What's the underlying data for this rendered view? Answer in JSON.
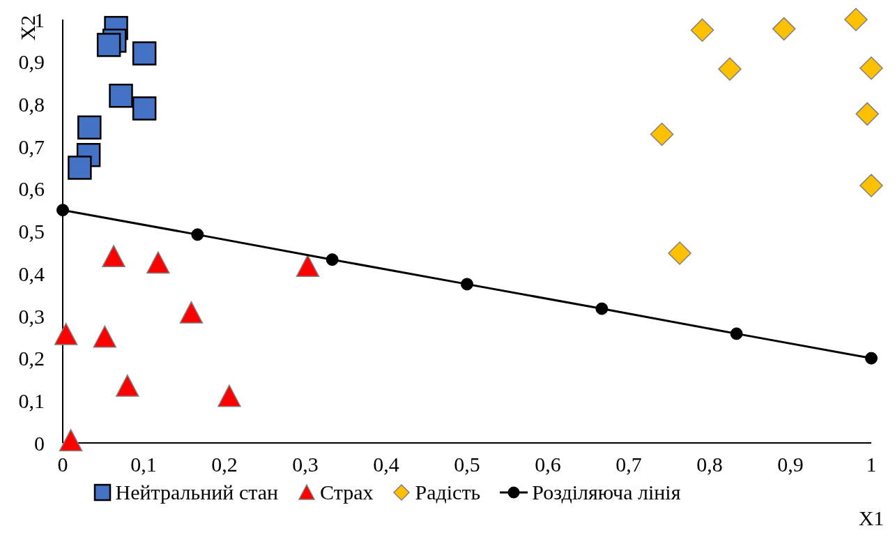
{
  "chart_data": {
    "type": "scatter",
    "xlabel": "X1",
    "ylabel": "X2",
    "xlim": [
      0,
      1
    ],
    "ylim": [
      0,
      1
    ],
    "xticks": [
      0,
      {
        "value": 0.1,
        "label": "0,1"
      },
      {
        "value": 0.2,
        "label": "0,2"
      },
      {
        "value": 0.3,
        "label": "0,3"
      },
      {
        "value": 0.4,
        "label": "0,4"
      },
      {
        "value": 0.5,
        "label": "0,5"
      },
      {
        "value": 0.6,
        "label": "0,6"
      },
      {
        "value": 0.7,
        "label": "0,7"
      },
      {
        "value": 0.8,
        "label": "0,8"
      },
      {
        "value": 0.9,
        "label": "0,9"
      },
      1
    ],
    "yticks": [
      0,
      {
        "value": 0.1,
        "label": "0,1"
      },
      {
        "value": 0.2,
        "label": "0,2"
      },
      {
        "value": 0.3,
        "label": "0,3"
      },
      {
        "value": 0.4,
        "label": "0,4"
      },
      {
        "value": 0.5,
        "label": "0,5"
      },
      {
        "value": 0.6,
        "label": "0,6"
      },
      {
        "value": 0.7,
        "label": "0,7"
      },
      {
        "value": 0.8,
        "label": "0,8"
      },
      {
        "value": 0.9,
        "label": "0,9"
      },
      1
    ],
    "grid": false,
    "legend": "bottom",
    "series": [
      {
        "name": "Нейтральний стан",
        "marker": "square",
        "color": "#4472c4",
        "x": [
          0.066,
          0.064,
          0.057,
          0.101,
          0.072,
          0.101,
          0.033,
          0.032,
          0.021
        ],
        "values": [
          0.98,
          0.95,
          0.94,
          0.92,
          0.82,
          0.79,
          0.745,
          0.68,
          0.65
        ]
      },
      {
        "name": "Страх",
        "marker": "triangle",
        "color": "#ff0000",
        "x": [
          0.063,
          0.118,
          0.303,
          0.159,
          0.004,
          0.052,
          0.08,
          0.206,
          0.01
        ],
        "values": [
          0.44,
          0.425,
          0.417,
          0.307,
          0.256,
          0.25,
          0.134,
          0.11,
          0.005
        ]
      },
      {
        "name": "Радість",
        "marker": "diamond",
        "color": "#ffc000",
        "x": [
          0.791,
          0.892,
          0.981,
          0.825,
          1,
          0.995,
          0.741,
          1,
          0.763
        ],
        "values": [
          0.975,
          0.978,
          1,
          0.883,
          0.885,
          0.777,
          0.729,
          0.608,
          0.448
        ]
      },
      {
        "name": "Розділяюча лінія",
        "type": "line",
        "marker": "circle",
        "color": "#000000",
        "x": [
          0,
          0.1667,
          0.3333,
          0.5,
          0.6667,
          0.8333,
          1
        ],
        "values": [
          0.55,
          0.492,
          0.433,
          0.375,
          0.317,
          0.258,
          0.2
        ]
      }
    ]
  }
}
